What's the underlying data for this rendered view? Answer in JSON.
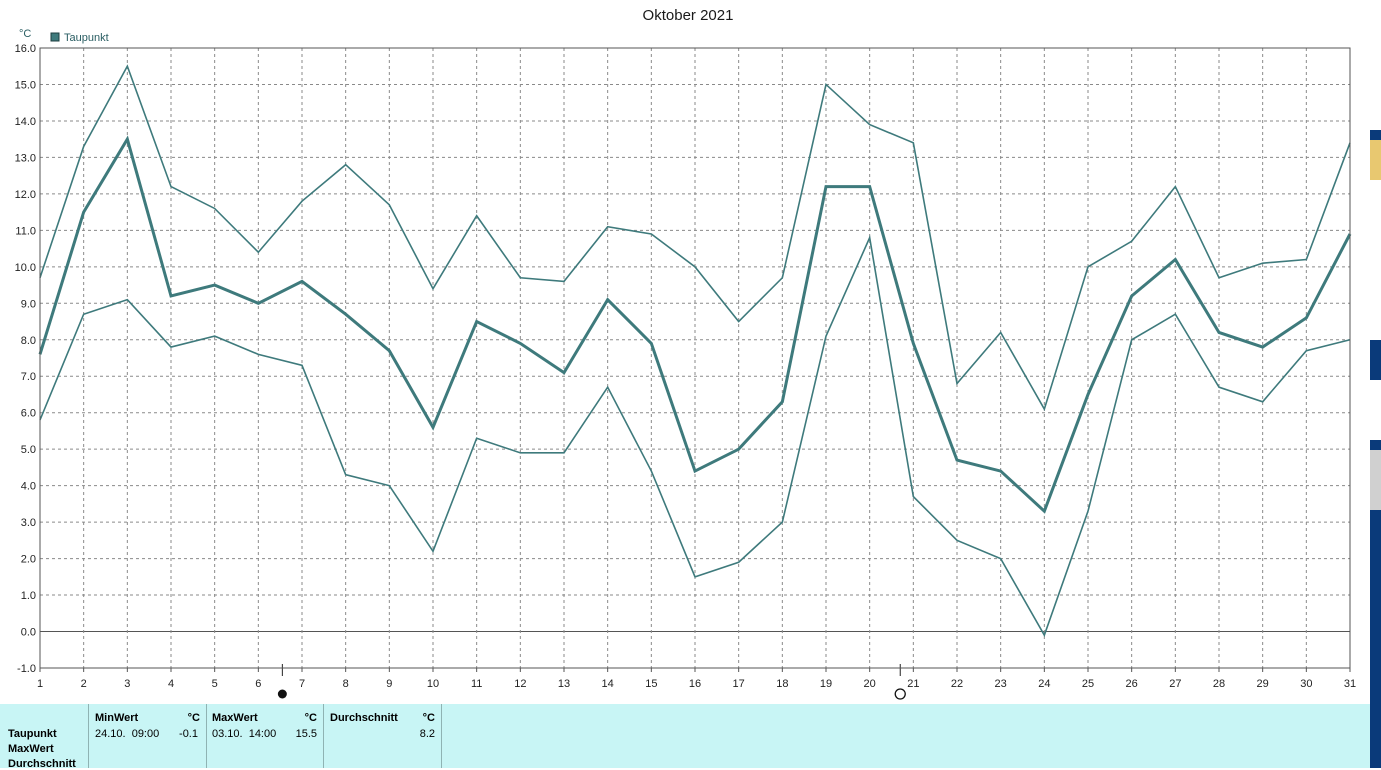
{
  "chart_data": {
    "type": "line",
    "title": "Oktober 2021",
    "yunit": "°C",
    "legend": "Taupunkt",
    "ylim": [
      -1.0,
      16.0
    ],
    "ytick_labels": [
      "-1.0",
      "0.0",
      "1.0",
      "2.0",
      "3.0",
      "4.0",
      "5.0",
      "6.0",
      "7.0",
      "8.0",
      "9.0",
      "10.0",
      "11.0",
      "12.0",
      "13.0",
      "14.0",
      "15.0",
      "16.0"
    ],
    "x": [
      1,
      2,
      3,
      4,
      5,
      6,
      7,
      8,
      9,
      10,
      11,
      12,
      13,
      14,
      15,
      16,
      17,
      18,
      19,
      20,
      21,
      22,
      23,
      24,
      25,
      26,
      27,
      28,
      29,
      30,
      31
    ],
    "xtick_labels": [
      "1",
      "2",
      "3",
      "4",
      "5",
      "6",
      "7",
      "8",
      "9",
      "10",
      "11",
      "12",
      "13",
      "14",
      "15",
      "16",
      "17",
      "18",
      "19",
      "20",
      "21",
      "22",
      "23",
      "24",
      "25",
      "26",
      "27",
      "28",
      "29",
      "30",
      "31"
    ],
    "grid": true,
    "moon_phases": [
      {
        "x": 6.55,
        "phase": "new"
      },
      {
        "x": 20.7,
        "phase": "full"
      }
    ],
    "series": [
      {
        "role": "max",
        "color": "#3e7a7c",
        "values": [
          9.7,
          13.3,
          15.5,
          12.2,
          11.6,
          10.4,
          11.8,
          12.8,
          11.7,
          9.4,
          11.4,
          9.7,
          9.6,
          11.1,
          10.9,
          10.0,
          8.5,
          9.7,
          15.0,
          13.9,
          13.4,
          6.8,
          8.2,
          6.1,
          10.0,
          10.7,
          12.2,
          9.7,
          10.1,
          10.2,
          13.4
        ]
      },
      {
        "role": "mean",
        "color": "#3e7a7c",
        "values": [
          7.6,
          11.5,
          13.5,
          9.2,
          9.5,
          9.0,
          9.6,
          8.7,
          7.7,
          5.6,
          8.5,
          7.9,
          7.1,
          9.1,
          7.9,
          4.4,
          5.0,
          6.3,
          12.2,
          12.2,
          7.9,
          4.7,
          4.4,
          3.3,
          6.5,
          9.2,
          10.2,
          8.2,
          7.8,
          8.6,
          10.9
        ]
      },
      {
        "role": "min",
        "color": "#3e7a7c",
        "values": [
          5.8,
          8.7,
          9.1,
          7.8,
          8.1,
          7.6,
          7.3,
          4.3,
          4.0,
          2.2,
          5.3,
          4.9,
          4.9,
          6.7,
          4.4,
          1.5,
          1.9,
          3.0,
          8.1,
          10.8,
          3.7,
          2.5,
          2.0,
          -0.1,
          3.3,
          8.0,
          8.7,
          6.7,
          6.3,
          7.7,
          8.0
        ]
      }
    ]
  },
  "stats": {
    "rows": [
      "Taupunkt",
      "MaxWert",
      "Durchschnitt"
    ],
    "min": {
      "header": "MinWert",
      "unit": "°C",
      "date": "24.10.  09:00",
      "value": "-0.1"
    },
    "max": {
      "header": "MaxWert",
      "unit": "°C",
      "date": "03.10.  14:00",
      "value": "15.5"
    },
    "avg": {
      "header": "Durchschnitt",
      "unit": "°C",
      "value": "8.2"
    }
  },
  "colors": {
    "line": "#3e7a7c",
    "panel": "#c8f5f5",
    "grid": "#8a8a8a"
  }
}
